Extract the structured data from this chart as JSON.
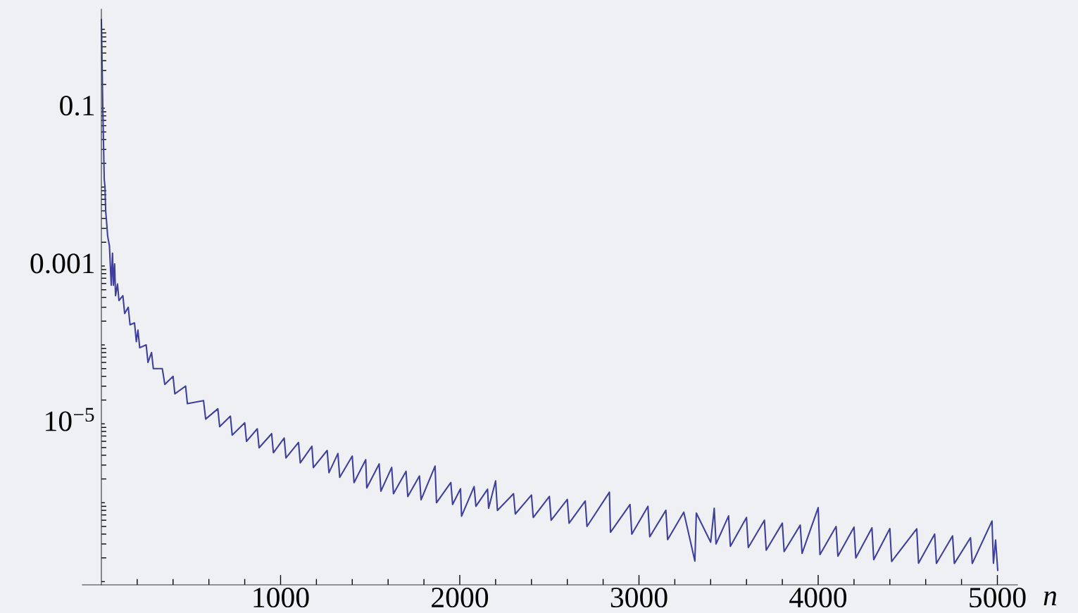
{
  "chart_data": {
    "type": "line",
    "xlabel": "n",
    "xlim": [
      -106,
      5112
    ],
    "ylim": [
      9.1e-08,
      1.8
    ],
    "log": "y",
    "grid": false,
    "marker": "none",
    "line_style": "solid",
    "xticks": [
      {
        "value": 200,
        "label": null
      },
      {
        "value": 400,
        "label": null
      },
      {
        "value": 600,
        "label": null
      },
      {
        "value": 800,
        "label": null
      },
      1000,
      {
        "value": 1200,
        "label": null
      },
      {
        "value": 1400,
        "label": null
      },
      {
        "value": 1600,
        "label": null
      },
      {
        "value": 1800,
        "label": null
      },
      2000,
      {
        "value": 2200,
        "label": null
      },
      {
        "value": 2400,
        "label": null
      },
      {
        "value": 2600,
        "label": null
      },
      {
        "value": 2800,
        "label": null
      },
      3000,
      {
        "value": 3200,
        "label": null
      },
      {
        "value": 3400,
        "label": null
      },
      {
        "value": 3600,
        "label": null
      },
      {
        "value": 3800,
        "label": null
      },
      4000,
      {
        "value": 4200,
        "label": null
      },
      {
        "value": 4400,
        "label": null
      },
      {
        "value": 4600,
        "label": null
      },
      {
        "value": 4800,
        "label": null
      },
      5000
    ],
    "yticks": [
      {
        "value": 1e-07,
        "label": null
      },
      {
        "value": 1e-06,
        "label": null
      },
      {
        "value": 1e-05,
        "label": "10$^{−5}$"
      },
      {
        "value": 0.0001,
        "label": null
      },
      0.001,
      {
        "value": 0.01,
        "label": null
      },
      0.1,
      {
        "value": 1,
        "label": null
      }
    ],
    "series": [
      {
        "color": "#3f3f9c",
        "x": [
          0,
          8,
          16,
          20,
          24,
          30,
          35,
          45,
          55,
          62,
          67,
          74,
          79,
          90,
          98,
          120,
          130,
          150,
          160,
          185,
          195,
          204,
          214,
          250,
          260,
          280,
          290,
          340,
          354,
          400,
          410,
          470,
          480,
          570,
          582,
          650,
          660,
          720,
          730,
          800,
          810,
          870,
          880,
          950,
          960,
          1020,
          1030,
          1100,
          1110,
          1175,
          1183,
          1260,
          1270,
          1320,
          1330,
          1400,
          1410,
          1475,
          1481,
          1550,
          1560,
          1620,
          1630,
          1700,
          1710,
          1775,
          1784,
          1862,
          1870,
          1950,
          1960,
          2004,
          2010,
          2080,
          2090,
          2155,
          2161,
          2200,
          2210,
          2300,
          2310,
          2400,
          2410,
          2500,
          2510,
          2600,
          2610,
          2700,
          2710,
          2835,
          2841,
          2950,
          2960,
          3050,
          3060,
          3150,
          3160,
          3250,
          3312,
          3320,
          3400,
          3420,
          3430,
          3500,
          3510,
          3600,
          3610,
          3700,
          3710,
          3800,
          3810,
          3900,
          3910,
          4000,
          4010,
          4100,
          4110,
          4200,
          4210,
          4300,
          4310,
          4400,
          4410,
          4550,
          4560,
          4650,
          4660,
          4750,
          4760,
          4850,
          4860,
          4970,
          4978,
          4990,
          5002
        ],
        "values": [
          1.33,
          0.1,
          0.0125,
          0.0102,
          0.005,
          0.0034,
          0.0024,
          0.0018,
          0.00057,
          0.00145,
          0.00057,
          0.00106,
          0.00042,
          0.00059,
          0.000365,
          0.00042,
          0.00025,
          0.0003,
          0.00018,
          0.00019,
          0.00011,
          0.000154,
          9.2e-05,
          0.0001,
          6e-05,
          8e-05,
          5e-05,
          5e-05,
          3.16e-05,
          4e-05,
          2.4e-05,
          3e-05,
          1.8e-05,
          1.97e-05,
          1.15e-05,
          1.55e-05,
          9.2e-06,
          1.25e-05,
          7.2e-06,
          1.03e-05,
          6e-06,
          8.65e-06,
          4.97e-06,
          7.5e-06,
          4.3e-06,
          6.6e-06,
          3.7e-06,
          5.8e-06,
          3.2e-06,
          5.18e-06,
          2.79e-06,
          4.6e-06,
          2.4e-06,
          4.2e-06,
          2.1e-06,
          3.9e-06,
          1.8e-06,
          3.51e-06,
          1.54e-06,
          3.1e-06,
          1.4e-06,
          2.8e-06,
          1.3e-06,
          2.5e-06,
          1.2e-06,
          2.18e-06,
          1.09e-06,
          2.91e-06,
          1e-06,
          1.8e-06,
          9.5e-07,
          1.5e-06,
          6.76e-07,
          1.6e-06,
          9e-07,
          1.48e-06,
          8.5e-07,
          1.89e-06,
          8e-07,
          1.3e-06,
          7.2e-07,
          1.25e-06,
          6.5e-07,
          1.2e-06,
          6e-07,
          1.1e-06,
          5.5e-07,
          1.05e-06,
          5e-07,
          1.36e-06,
          4.22e-07,
          9.5e-07,
          4e-07,
          9e-07,
          3.7e-07,
          8e-07,
          3.4e-07,
          7.6e-07,
          1.82e-07,
          7.4e-07,
          3.16e-07,
          8.5e-07,
          3e-07,
          6.8e-07,
          2.8e-07,
          6.5e-07,
          2.7e-07,
          6e-07,
          2.5e-07,
          5.5e-07,
          2.4e-07,
          5.2e-07,
          2.28e-07,
          8.65e-07,
          2.2e-07,
          5e-07,
          2.1e-07,
          4.9e-07,
          2e-07,
          4.8e-07,
          1.9e-07,
          4.7e-07,
          1.8e-07,
          4.68e-07,
          1.71e-07,
          4e-07,
          1.7e-07,
          3.8e-07,
          1.7e-07,
          3.6e-07,
          1.7e-07,
          5.86e-07,
          1.71e-07,
          3.37e-07,
          1.39e-07
        ]
      }
    ]
  }
}
